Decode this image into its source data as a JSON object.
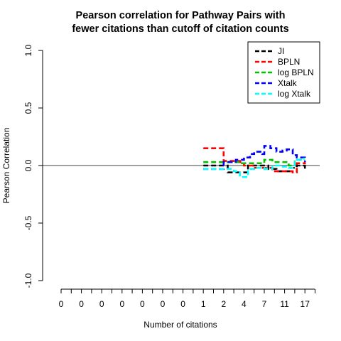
{
  "chart_data": {
    "type": "line",
    "title": [
      "Pearson correlation for Pathway Pairs with",
      "fewer citations than cutoff of citation counts"
    ],
    "xlabel": "Number of citations",
    "ylabel": "Pearson Correlation",
    "ylim": [
      -1.0,
      1.0
    ],
    "y_ticks": [
      "-1.0",
      "-0.5",
      "0.0",
      "0.5",
      "1.0"
    ],
    "x_tick_labels": [
      "0",
      "0",
      "0",
      "0",
      "0",
      "0",
      "0",
      "1",
      "2",
      "4",
      "7",
      "11",
      "17"
    ],
    "x_positions": 13,
    "legend_position": "top-right",
    "reference_line_y": 0,
    "series": [
      {
        "name": "JI",
        "color": "#000000",
        "points": [
          [
            7.0,
            0.0
          ],
          [
            8.0,
            0.0
          ],
          [
            8.2,
            -0.06
          ],
          [
            9.0,
            -0.06
          ],
          [
            9.2,
            0.0
          ],
          [
            10.0,
            0.0
          ],
          [
            10.2,
            -0.03
          ],
          [
            10.6,
            -0.05
          ],
          [
            11.0,
            -0.05
          ],
          [
            11.3,
            -0.02
          ],
          [
            11.6,
            0.0
          ],
          [
            11.8,
            0.0
          ],
          [
            12.0,
            -0.03
          ]
        ]
      },
      {
        "name": "BPLN",
        "color": "#ff0000",
        "points": [
          [
            7.0,
            0.15
          ],
          [
            7.9,
            0.15
          ],
          [
            8.0,
            0.04
          ],
          [
            8.8,
            0.03
          ],
          [
            9.0,
            0.0
          ],
          [
            9.4,
            0.0
          ],
          [
            9.5,
            -0.02
          ],
          [
            10.0,
            -0.02
          ],
          [
            10.4,
            -0.05
          ],
          [
            11.0,
            -0.05
          ],
          [
            11.2,
            -0.05
          ],
          [
            11.4,
            -0.06
          ],
          [
            11.6,
            0.02
          ],
          [
            12.0,
            0.03
          ]
        ]
      },
      {
        "name": "log BPLN",
        "color": "#00c000",
        "points": [
          [
            7.0,
            0.03
          ],
          [
            7.8,
            0.03
          ],
          [
            8.0,
            0.03
          ],
          [
            8.9,
            0.02
          ],
          [
            9.1,
            0.02
          ],
          [
            9.6,
            0.02
          ],
          [
            10.0,
            0.05
          ],
          [
            10.4,
            0.03
          ],
          [
            10.8,
            0.03
          ],
          [
            11.2,
            0.0
          ],
          [
            11.5,
            0.05
          ],
          [
            11.8,
            0.05
          ],
          [
            12.0,
            0.05
          ]
        ]
      },
      {
        "name": "Xtalk",
        "color": "#0000ff",
        "points": [
          [
            7.0,
            -0.03
          ],
          [
            8.0,
            -0.03
          ],
          [
            8.0,
            0.03
          ],
          [
            8.6,
            0.05
          ],
          [
            9.0,
            0.07
          ],
          [
            9.3,
            0.1
          ],
          [
            9.5,
            0.12
          ],
          [
            9.9,
            0.1
          ],
          [
            10.0,
            0.17
          ],
          [
            10.3,
            0.15
          ],
          [
            10.6,
            0.12
          ],
          [
            10.9,
            0.13
          ],
          [
            11.1,
            0.14
          ],
          [
            11.4,
            0.09
          ],
          [
            11.6,
            0.07
          ],
          [
            12.0,
            0.03
          ]
        ]
      },
      {
        "name": "log Xtalk",
        "color": "#00ffff",
        "points": [
          [
            7.0,
            -0.03
          ],
          [
            8.0,
            -0.03
          ],
          [
            8.5,
            -0.05
          ],
          [
            8.8,
            -0.1
          ],
          [
            9.2,
            -0.03
          ],
          [
            9.5,
            -0.02
          ],
          [
            10.0,
            -0.03
          ],
          [
            10.4,
            0.0
          ],
          [
            10.8,
            -0.01
          ],
          [
            11.2,
            -0.02
          ],
          [
            11.5,
            0.05
          ],
          [
            11.8,
            0.06
          ],
          [
            12.0,
            0.06
          ]
        ]
      }
    ]
  }
}
